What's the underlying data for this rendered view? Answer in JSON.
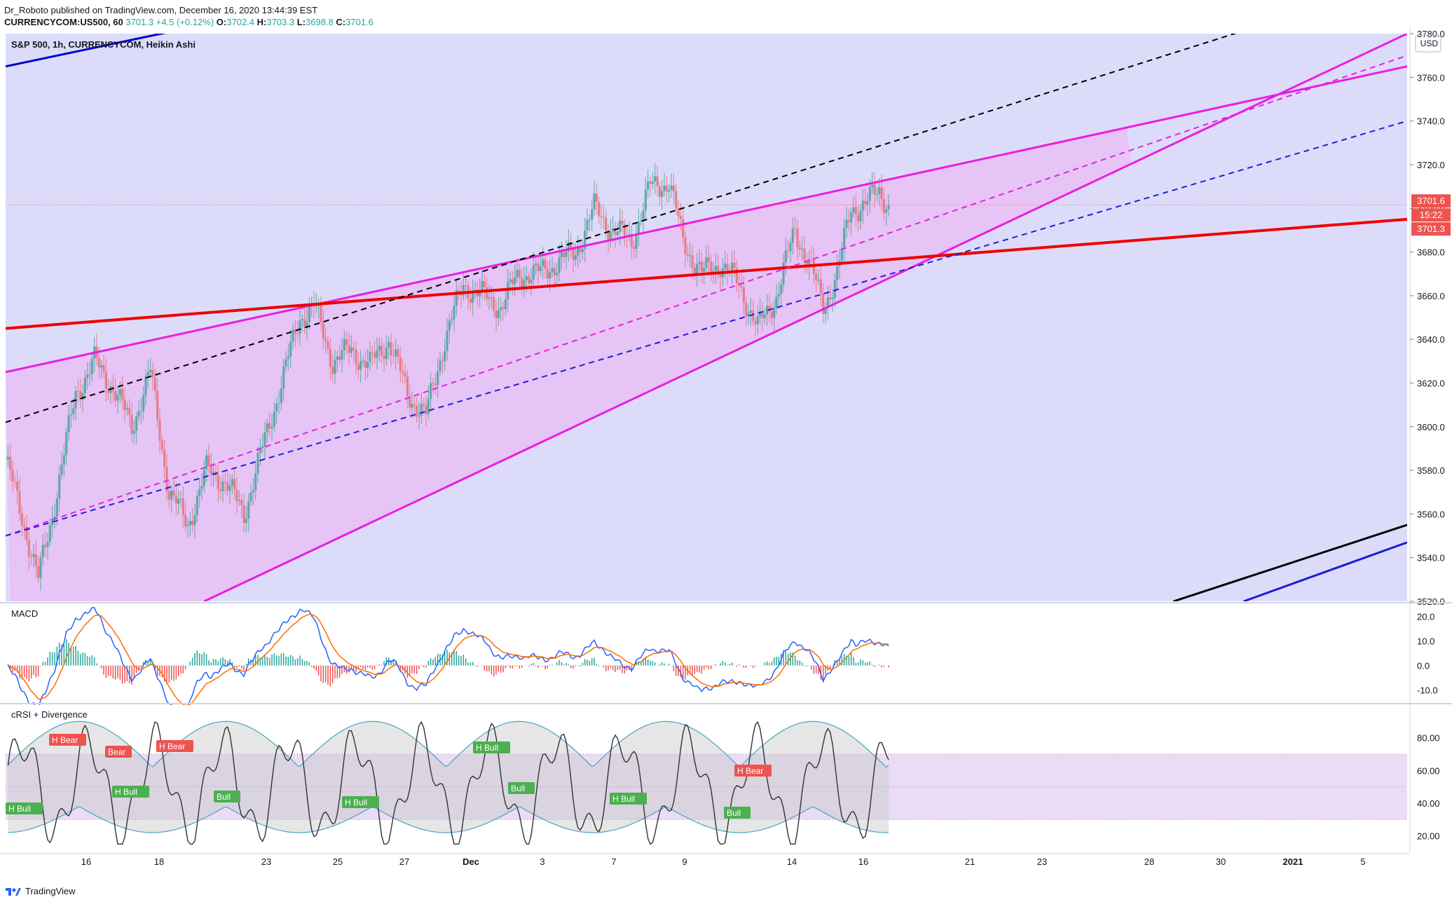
{
  "header": {
    "publisher_line": "Dr_Roboto published on TradingView.com, December 16, 2020 13:44:39 EST",
    "symbol_line": "CURRENCYCOM:US500, 60",
    "last": "3701.3",
    "change": "+4.5 (+0.12%)",
    "o_label": "O:",
    "o": "3702.4",
    "h_label": "H:",
    "h": "3703.3",
    "l_label": "L:",
    "l": "3698.8",
    "c_label": "C:",
    "c": "3701.6"
  },
  "footer": {
    "brand": "TradingView"
  },
  "chart_data": [
    {
      "type": "candlestick",
      "title": "S&P 500, 1h, CURRENCYCOM, Heikin Ashi",
      "currency": "USD",
      "ylim": [
        3520,
        3780
      ],
      "y_ticks": [
        "3780.0",
        "3760.0",
        "3740.0",
        "3720.0",
        "3700.0",
        "3680.0",
        "3660.0",
        "3640.0",
        "3620.0",
        "3600.0",
        "3580.0",
        "3560.0",
        "3540.0",
        "3520.0"
      ],
      "price_labels": [
        {
          "text": "3701.6",
          "color": "#ef5350"
        },
        {
          "text": "15:22",
          "color": "#ef5350"
        },
        {
          "text": "3701.3",
          "color": "#ef5350"
        }
      ],
      "x_ticks": [
        "16",
        "18",
        "23",
        "25",
        "27",
        "Dec",
        "3",
        "7",
        "9",
        "14",
        "16",
        "21",
        "23",
        "28",
        "30",
        "2021",
        "5"
      ],
      "series_close_path": [
        {
          "i": 0,
          "v": 3585
        },
        {
          "i": 8,
          "v": 3555
        },
        {
          "i": 14,
          "v": 3530
        },
        {
          "i": 20,
          "v": 3560
        },
        {
          "i": 30,
          "v": 3615
        },
        {
          "i": 38,
          "v": 3630
        },
        {
          "i": 46,
          "v": 3618
        },
        {
          "i": 54,
          "v": 3600
        },
        {
          "i": 62,
          "v": 3625
        },
        {
          "i": 70,
          "v": 3570
        },
        {
          "i": 78,
          "v": 3555
        },
        {
          "i": 86,
          "v": 3580
        },
        {
          "i": 94,
          "v": 3575
        },
        {
          "i": 102,
          "v": 3560
        },
        {
          "i": 110,
          "v": 3590
        },
        {
          "i": 118,
          "v": 3620
        },
        {
          "i": 126,
          "v": 3650
        },
        {
          "i": 132,
          "v": 3655
        },
        {
          "i": 140,
          "v": 3630
        },
        {
          "i": 148,
          "v": 3635
        },
        {
          "i": 156,
          "v": 3628
        },
        {
          "i": 164,
          "v": 3640
        },
        {
          "i": 172,
          "v": 3615
        },
        {
          "i": 180,
          "v": 3605
        },
        {
          "i": 188,
          "v": 3640
        },
        {
          "i": 196,
          "v": 3665
        },
        {
          "i": 204,
          "v": 3660
        },
        {
          "i": 212,
          "v": 3655
        },
        {
          "i": 220,
          "v": 3670
        },
        {
          "i": 228,
          "v": 3670
        },
        {
          "i": 236,
          "v": 3675
        },
        {
          "i": 244,
          "v": 3680
        },
        {
          "i": 252,
          "v": 3700
        },
        {
          "i": 260,
          "v": 3690
        },
        {
          "i": 268,
          "v": 3685
        },
        {
          "i": 276,
          "v": 3710
        },
        {
          "i": 284,
          "v": 3712
        },
        {
          "i": 290,
          "v": 3685
        },
        {
          "i": 298,
          "v": 3670
        },
        {
          "i": 306,
          "v": 3675
        },
        {
          "i": 314,
          "v": 3665
        },
        {
          "i": 322,
          "v": 3645
        },
        {
          "i": 330,
          "v": 3660
        },
        {
          "i": 338,
          "v": 3690
        },
        {
          "i": 344,
          "v": 3675
        },
        {
          "i": 350,
          "v": 3655
        },
        {
          "i": 356,
          "v": 3670
        },
        {
          "i": 362,
          "v": 3700
        },
        {
          "i": 368,
          "v": 3702
        },
        {
          "i": 374,
          "v": 3708
        },
        {
          "i": 378,
          "v": 3701.6
        }
      ],
      "trend_lines": [
        {
          "name": "",
          "color": "#e91ee0",
          "style": "solid",
          "from": [
            0,
            3625
          ],
          "to": [
            600,
            3765
          ]
        },
        {
          "name": "",
          "color": "#e91ee0",
          "style": "solid",
          "from": [
            85,
            3520
          ],
          "to": [
            600,
            3780
          ]
        },
        {
          "name": "",
          "color": "#ef0000",
          "style": "solid",
          "from": [
            0,
            3645
          ],
          "to": [
            600,
            3695
          ]
        },
        {
          "name": "",
          "color": "#e91ee0",
          "style": "dashed",
          "from": [
            0,
            3550
          ],
          "to": [
            600,
            3770
          ]
        },
        {
          "name": "",
          "color": "#1e1ee0",
          "style": "dashed",
          "from": [
            0,
            3550
          ],
          "to": [
            600,
            3740
          ]
        },
        {
          "name": "",
          "color": "#000000",
          "style": "dashed",
          "from": [
            0,
            3602
          ],
          "to": [
            600,
            3805
          ]
        },
        {
          "name": "",
          "color": "#0000cc",
          "style": "solid",
          "from": [
            0,
            3765
          ],
          "to": [
            600,
            3900
          ]
        },
        {
          "name": "",
          "color": "#000000",
          "style": "solid",
          "from": [
            500,
            3520
          ],
          "to": [
            600,
            3555
          ]
        },
        {
          "name": "",
          "color": "#1c1cd6",
          "style": "solid",
          "from": [
            530,
            3520
          ],
          "to": [
            600,
            3547
          ]
        }
      ]
    },
    {
      "type": "line",
      "title": "MACD",
      "ylim": [
        -15,
        25
      ],
      "y_ticks": [
        "20.0",
        "10.0",
        "0.0",
        "-10.0"
      ]
    },
    {
      "type": "line",
      "title": "cRSI + Divergence",
      "ylim": [
        10,
        100
      ],
      "y_ticks": [
        "80.00",
        "60.00",
        "40.00",
        "20.00"
      ],
      "band": [
        30,
        70
      ],
      "labels": [
        {
          "text": "H Bull",
          "kind": "bull"
        },
        {
          "text": "H Bear",
          "kind": "bear"
        },
        {
          "text": "Bear",
          "kind": "bear"
        },
        {
          "text": "H Bull",
          "kind": "bull"
        },
        {
          "text": "H Bear",
          "kind": "bear"
        },
        {
          "text": "Bull",
          "kind": "bull"
        },
        {
          "text": "H Bull",
          "kind": "bull"
        },
        {
          "text": "H Bull",
          "kind": "bull"
        },
        {
          "text": "Bull",
          "kind": "bull"
        },
        {
          "text": "H Bull",
          "kind": "bull"
        },
        {
          "text": "H Bear",
          "kind": "bear"
        },
        {
          "text": "Bull",
          "kind": "bull"
        }
      ]
    }
  ]
}
